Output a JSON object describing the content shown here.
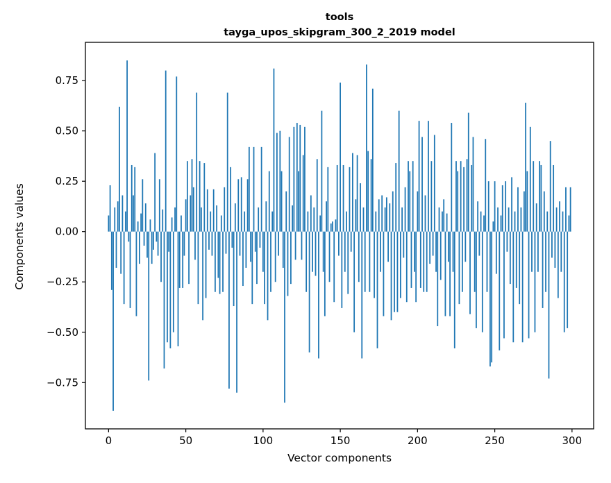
{
  "figure": {
    "title_line1": "tools",
    "title_line2": "tayga_upos_skipgram_300_2_2019 model",
    "xlabel": "Vector components",
    "ylabel": "Components values"
  },
  "chart_data": {
    "type": "bar",
    "title": "tools\ntayga_upos_skipgram_300_2_2019 model",
    "xlabel": "Vector components",
    "ylabel": "Components values",
    "bar_color": "#1f77b4",
    "xlim": [
      -15,
      314
    ],
    "ylim": [
      -0.98,
      0.94
    ],
    "x_ticks": [
      0,
      50,
      100,
      150,
      200,
      250,
      300
    ],
    "x_tick_labels": [
      "0",
      "50",
      "100",
      "150",
      "200",
      "250",
      "300"
    ],
    "y_ticks": [
      -0.75,
      -0.5,
      -0.25,
      0,
      0.25,
      0.5,
      0.75
    ],
    "y_tick_labels": [
      "−0.75",
      "−0.50",
      "−0.25",
      "0.00",
      "0.25",
      "0.50",
      "0.75"
    ],
    "grid": false,
    "legend": "none",
    "values": [
      0.08,
      0.23,
      -0.29,
      -0.89,
      0.12,
      -0.18,
      0.15,
      0.62,
      -0.21,
      0.18,
      -0.36,
      0.1,
      0.85,
      -0.05,
      -0.38,
      0.33,
      0.18,
      0.32,
      -0.42,
      0.05,
      -0.16,
      0.09,
      0.26,
      -0.07,
      0.14,
      -0.13,
      -0.74,
      0.06,
      -0.16,
      -0.09,
      0.39,
      -0.05,
      -0.12,
      0.26,
      -0.25,
      0.11,
      -0.68,
      0.8,
      -0.55,
      -0.1,
      -0.58,
      0.07,
      -0.5,
      0.12,
      0.77,
      -0.57,
      -0.28,
      0.08,
      -0.28,
      -0.12,
      0.16,
      0.35,
      -0.26,
      0.18,
      0.36,
      0.22,
      -0.14,
      0.69,
      -0.36,
      0.35,
      0.12,
      -0.44,
      0.34,
      -0.33,
      0.21,
      -0.09,
      0.1,
      -0.12,
      0.21,
      -0.3,
      0.13,
      -0.23,
      -0.31,
      0.08,
      -0.3,
      0.22,
      -0.11,
      0.69,
      -0.78,
      0.32,
      -0.08,
      -0.37,
      0.14,
      -0.8,
      0.26,
      -0.12,
      0.27,
      -0.27,
      0.1,
      -0.18,
      0.26,
      0.42,
      -0.15,
      -0.36,
      0.42,
      -0.1,
      -0.26,
      0.12,
      -0.08,
      0.42,
      -0.2,
      -0.36,
      0.15,
      -0.44,
      0.3,
      -0.3,
      0.1,
      0.81,
      -0.25,
      0.49,
      -0.12,
      0.5,
      0.3,
      -0.18,
      -0.85,
      0.2,
      -0.32,
      0.47,
      -0.26,
      0.13,
      0.52,
      -0.14,
      0.54,
      0.3,
      0.53,
      -0.14,
      0.38,
      0.52,
      -0.3,
      0.1,
      -0.6,
      0.18,
      -0.2,
      0.12,
      -0.22,
      0.36,
      -0.63,
      0.08,
      0.6,
      -0.2,
      -0.42,
      0.15,
      0.32,
      -0.25,
      0.04,
      0.05,
      -0.35,
      0.06,
      0.33,
      -0.12,
      0.74,
      -0.38,
      0.33,
      -0.2,
      0.1,
      -0.31,
      0.32,
      -0.1,
      0.39,
      -0.5,
      0.16,
      0.38,
      -0.25,
      0.24,
      -0.63,
      0.12,
      -0.3,
      0.83,
      0.4,
      -0.3,
      0.36,
      0.71,
      -0.33,
      0.1,
      -0.58,
      0.16,
      -0.2,
      0.18,
      -0.42,
      0.12,
      0.17,
      -0.15,
      0.14,
      -0.44,
      0.2,
      -0.4,
      0.34,
      -0.4,
      0.6,
      -0.33,
      0.12,
      -0.13,
      0.22,
      -0.35,
      0.35,
      0.3,
      -0.28,
      0.35,
      -0.2,
      -0.35,
      0.2,
      0.55,
      -0.28,
      0.47,
      -0.3,
      0.18,
      -0.3,
      0.55,
      -0.16,
      0.35,
      -0.12,
      0.48,
      -0.2,
      -0.47,
      0.12,
      -0.24,
      0.1,
      0.16,
      -0.42,
      0.09,
      -0.15,
      -0.42,
      0.54,
      -0.2,
      -0.58,
      0.35,
      0.3,
      -0.36,
      0.35,
      -0.3,
      0.32,
      -0.15,
      0.36,
      0.59,
      -0.41,
      0.33,
      0.47,
      -0.3,
      -0.48,
      0.15,
      -0.12,
      0.1,
      -0.5,
      0.08,
      0.46,
      -0.3,
      0.25,
      -0.67,
      -0.65,
      0.05,
      0.25,
      -0.21,
      0.12,
      -0.59,
      0.08,
      0.23,
      -0.53,
      0.25,
      -0.1,
      0.12,
      -0.26,
      0.27,
      -0.55,
      0.1,
      -0.28,
      0.22,
      -0.36,
      0.12,
      -0.55,
      0.2,
      0.64,
      0.3,
      -0.53,
      0.52,
      -0.2,
      0.35,
      -0.5,
      0.14,
      -0.2,
      0.35,
      0.33,
      -0.38,
      0.2,
      -0.3,
      0.1,
      -0.73,
      0.45,
      -0.13,
      0.33,
      -0.18,
      0.12,
      -0.33,
      0.15,
      -0.2,
      0.1,
      -0.5,
      0.22,
      -0.48,
      0.08,
      0.22
    ]
  }
}
